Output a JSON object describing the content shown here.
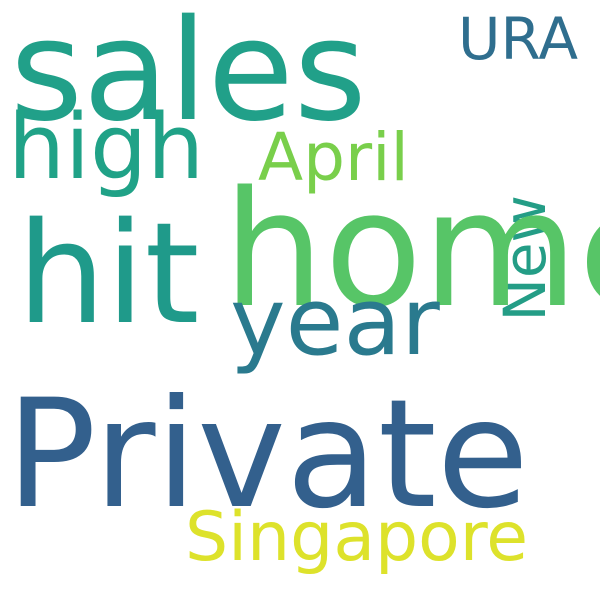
{
  "words": [
    {
      "text": "sales",
      "color": "#21a089"
    },
    {
      "text": "high",
      "color": "#20a287"
    },
    {
      "text": "URA",
      "color": "#2f6e8e"
    },
    {
      "text": "April",
      "color": "#79cf4b"
    },
    {
      "text": "New",
      "color": "#249d86"
    },
    {
      "text": "home",
      "color": "#57c567"
    },
    {
      "text": "hit",
      "color": "#1f9a8a"
    },
    {
      "text": "year",
      "color": "#2a7a8e"
    },
    {
      "text": "Private",
      "color": "#33608d"
    },
    {
      "text": "Singapore",
      "color": "#dde22b"
    }
  ]
}
